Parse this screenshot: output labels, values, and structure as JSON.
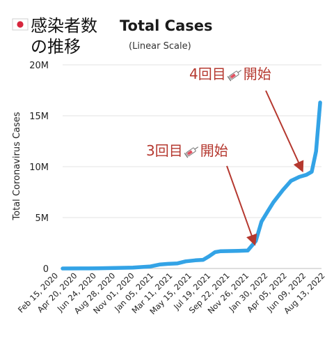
{
  "flag_icon": "japan-flag-icon",
  "syringe_icon": "syringe-icon",
  "title_jp_line1": "感染者数",
  "title_jp_line2": "の推移",
  "chart_data": {
    "type": "line",
    "title": "Total Cases",
    "subtitle": "(Linear Scale)",
    "ylabel": "Total Coronavirus Cases",
    "xlabel": "",
    "ylim": [
      0,
      20000000
    ],
    "y_ticks": [
      0,
      5000000,
      10000000,
      15000000,
      20000000
    ],
    "y_tick_labels": [
      "0",
      "5M",
      "10M",
      "15M",
      "20M"
    ],
    "x_tick_labels": [
      "Feb 15, 2020",
      "Apr 20, 2020",
      "Jun 24, 2020",
      "Aug 28, 2020",
      "Nov 01, 2020",
      "Jan 05, 2021",
      "Mar 11, 2021",
      "May 15, 2021",
      "Jul 19, 2021",
      "Sep 22, 2021",
      "Nov 26, 2021",
      "Jan 30, 2022",
      "Apr 05, 2022",
      "Jun 09, 2022",
      "Aug 13, 2022"
    ],
    "x_range": [
      "2020-02-15",
      "2022-09-30"
    ],
    "grid": true,
    "line_color": "#33a3e6",
    "annotation_color": "#b5382f",
    "series": [
      {
        "x": [
          "2020-02-15",
          "2020-04-20",
          "2020-06-24",
          "2020-08-28",
          "2020-11-01",
          "2021-01-05",
          "2021-02-10",
          "2021-03-11",
          "2021-04-15",
          "2021-05-15",
          "2021-06-20",
          "2021-07-19",
          "2021-08-10",
          "2021-09-01",
          "2021-09-22",
          "2021-11-26",
          "2021-12-31",
          "2022-01-30",
          "2022-02-20",
          "2022-03-15",
          "2022-04-05",
          "2022-05-10",
          "2022-06-09",
          "2022-07-10",
          "2022-08-05",
          "2022-08-25",
          "2022-09-10",
          "2022-09-25"
        ],
        "values": [
          0,
          10000,
          15000,
          50000,
          90000,
          200000,
          400000,
          450000,
          500000,
          700000,
          800000,
          850000,
          1200000,
          1600000,
          1700000,
          1730000,
          1760000,
          2700000,
          4600000,
          5600000,
          6500000,
          7700000,
          8600000,
          9000000,
          9200000,
          9500000,
          11500000,
          16300000
        ]
      }
    ],
    "annotations": [
      {
        "text": "3回目",
        "suffix": "開始",
        "x": "2022-01-30",
        "y": 1800000
      },
      {
        "text": "4回目",
        "suffix": "開始",
        "x": "2022-07-25",
        "y": 9000000
      }
    ]
  }
}
